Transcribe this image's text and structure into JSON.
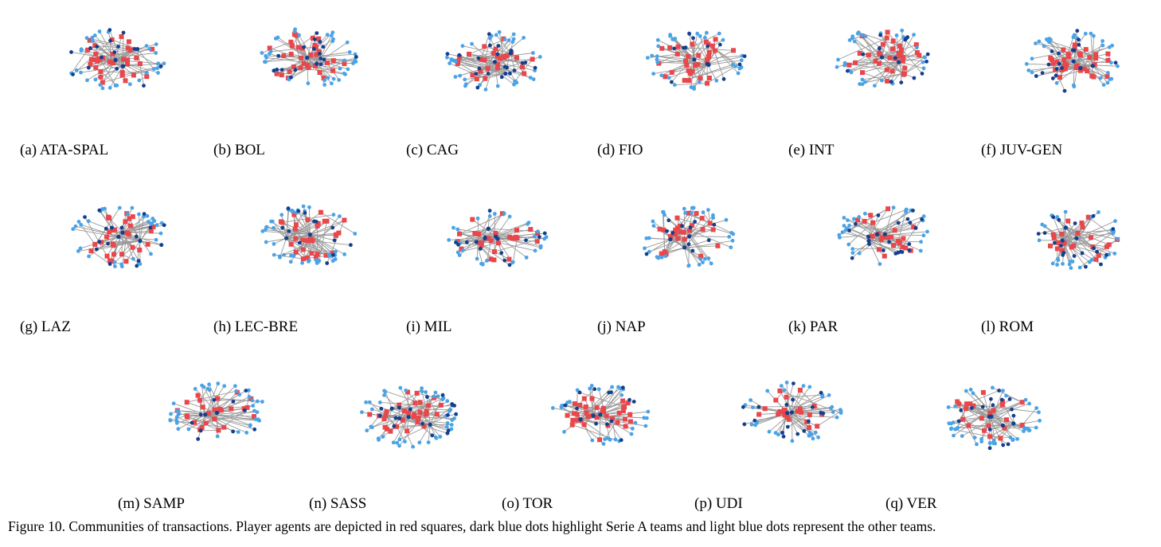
{
  "figure": {
    "caption": "Figure 10. Communities of transactions. Player agents are depicted in red squares, dark blue dots highlight Serie A teams and light blue dots represent the other teams."
  },
  "legend_colors": {
    "player_agent_square": "#e8474b",
    "serie_a_team_dot": "#143f8c",
    "other_team_dot": "#4aa3e6"
  },
  "panels": [
    {
      "label": "(a) ATA-SPAL"
    },
    {
      "label": "(b) BOL"
    },
    {
      "label": "(c) CAG"
    },
    {
      "label": "(d) FIO"
    },
    {
      "label": "(e) INT"
    },
    {
      "label": "(f) JUV-GEN"
    },
    {
      "label": "(g) LAZ"
    },
    {
      "label": "(h) LEC-BRE"
    },
    {
      "label": "(i) MIL"
    },
    {
      "label": "(j) NAP"
    },
    {
      "label": "(k) PAR"
    },
    {
      "label": "(l) ROM"
    },
    {
      "label": "(m) SAMP"
    },
    {
      "label": "(n) SASS"
    },
    {
      "label": "(o) TOR"
    },
    {
      "label": "(p) UDI"
    },
    {
      "label": "(q) VER"
    }
  ]
}
